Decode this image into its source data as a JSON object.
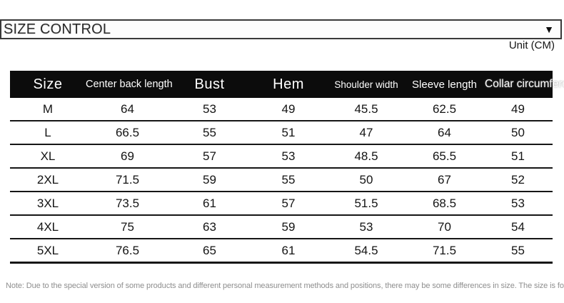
{
  "dropdown": {
    "label": "SIZE CONTROL",
    "arrow_icon": "▼"
  },
  "unit_label": "Unit (CM)",
  "table": {
    "columns": [
      "Size",
      "Center back length",
      "Bust",
      "Hem",
      "Shoulder width",
      "Sleeve length",
      "Collar circumference"
    ],
    "rows": [
      [
        "M",
        "64",
        "53",
        "49",
        "45.5",
        "62.5",
        "49"
      ],
      [
        "L",
        "66.5",
        "55",
        "51",
        "47",
        "64",
        "50"
      ],
      [
        "XL",
        "69",
        "57",
        "53",
        "48.5",
        "65.5",
        "51"
      ],
      [
        "2XL",
        "71.5",
        "59",
        "55",
        "50",
        "67",
        "52"
      ],
      [
        "3XL",
        "73.5",
        "61",
        "57",
        "51.5",
        "68.5",
        "53"
      ],
      [
        "4XL",
        "75",
        "63",
        "59",
        "53",
        "70",
        "54"
      ],
      [
        "5XL",
        "76.5",
        "65",
        "61",
        "54.5",
        "71.5",
        "55"
      ]
    ]
  },
  "note": "Note: Due to the special version of some products and different personal measurement methods and positions, there may be some differences in size. The size is for refe",
  "colors": {
    "header_bg": "#0c0c0c",
    "header_text": "#ffffff",
    "border": "#161616",
    "note_text": "#8e8e8e"
  }
}
